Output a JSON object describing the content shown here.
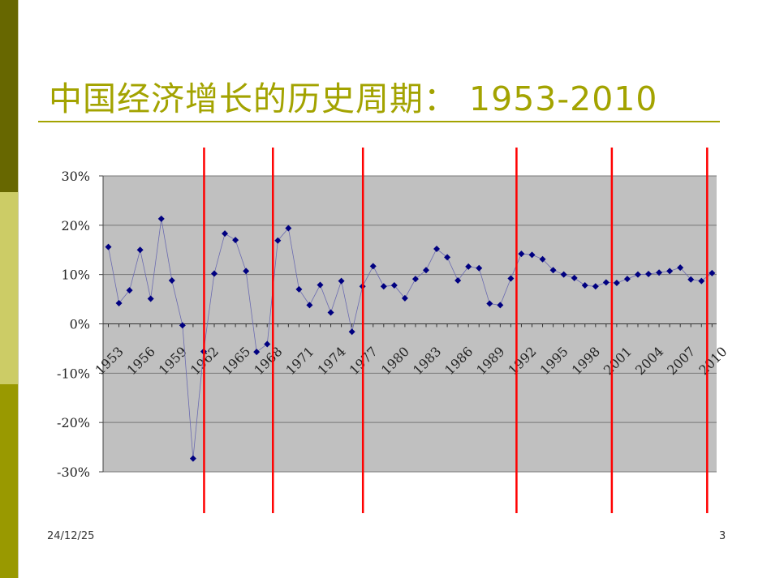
{
  "slide": {
    "title": "中国经济增长的历史周期： 1953-2010",
    "date": "24/12/25",
    "page_number": "3"
  },
  "colors": {
    "accent": "#a3a300",
    "sidebar_dark": "#676700",
    "sidebar_light": "#cccc66",
    "sidebar_mid": "#999900",
    "plot_background": "#c0c0c0",
    "series_marker": "#000080",
    "series_line": "#6b6bb0",
    "cycle_line": "#ff0000"
  },
  "chart_data": {
    "type": "line",
    "marker": "diamond",
    "title": "",
    "xlabel": "",
    "ylabel": "",
    "ylim": [
      -0.3,
      0.3
    ],
    "yticks": [
      -0.3,
      -0.2,
      -0.1,
      0,
      0.1,
      0.2,
      0.3
    ],
    "ytick_labels": [
      "-30%",
      "-20%",
      "-10%",
      "0%",
      "10%",
      "20%",
      "30%"
    ],
    "xtick_labels": [
      "1953",
      "1956",
      "1959",
      "1962",
      "1965",
      "1968",
      "1971",
      "1974",
      "1977",
      "1980",
      "1983",
      "1986",
      "1989",
      "1992",
      "1995",
      "1998",
      "2001",
      "2004",
      "2007",
      "2010"
    ],
    "grid": "horizontal",
    "legend": "none",
    "x": [
      1953,
      1954,
      1955,
      1956,
      1957,
      1958,
      1959,
      1960,
      1961,
      1962,
      1963,
      1964,
      1965,
      1966,
      1967,
      1968,
      1969,
      1970,
      1971,
      1972,
      1973,
      1974,
      1975,
      1976,
      1977,
      1978,
      1979,
      1980,
      1981,
      1982,
      1983,
      1984,
      1985,
      1986,
      1987,
      1988,
      1989,
      1990,
      1991,
      1992,
      1993,
      1994,
      1995,
      1996,
      1997,
      1998,
      1999,
      2000,
      2001,
      2002,
      2003,
      2004,
      2005,
      2006,
      2007,
      2008,
      2009,
      2010
    ],
    "series": [
      {
        "values": [
          0.156,
          0.042,
          0.068,
          0.15,
          0.051,
          0.213,
          0.088,
          -0.003,
          -0.273,
          -0.056,
          0.102,
          0.183,
          0.17,
          0.107,
          -0.057,
          -0.041,
          0.169,
          0.194,
          0.07,
          0.038,
          0.079,
          0.023,
          0.087,
          -0.016,
          0.076,
          0.117,
          0.076,
          0.078,
          0.052,
          0.091,
          0.109,
          0.152,
          0.135,
          0.088,
          0.116,
          0.113,
          0.041,
          0.038,
          0.092,
          0.142,
          0.14,
          0.131,
          0.109,
          0.1,
          0.093,
          0.078,
          0.076,
          0.084,
          0.083,
          0.091,
          0.1,
          0.101,
          0.104,
          0.107,
          0.114,
          0.09,
          0.087,
          0.103
        ]
      }
    ],
    "cycle_markers": [
      1962,
      1968.5,
      1977,
      1991.5,
      2000.5,
      2009.5
    ]
  }
}
